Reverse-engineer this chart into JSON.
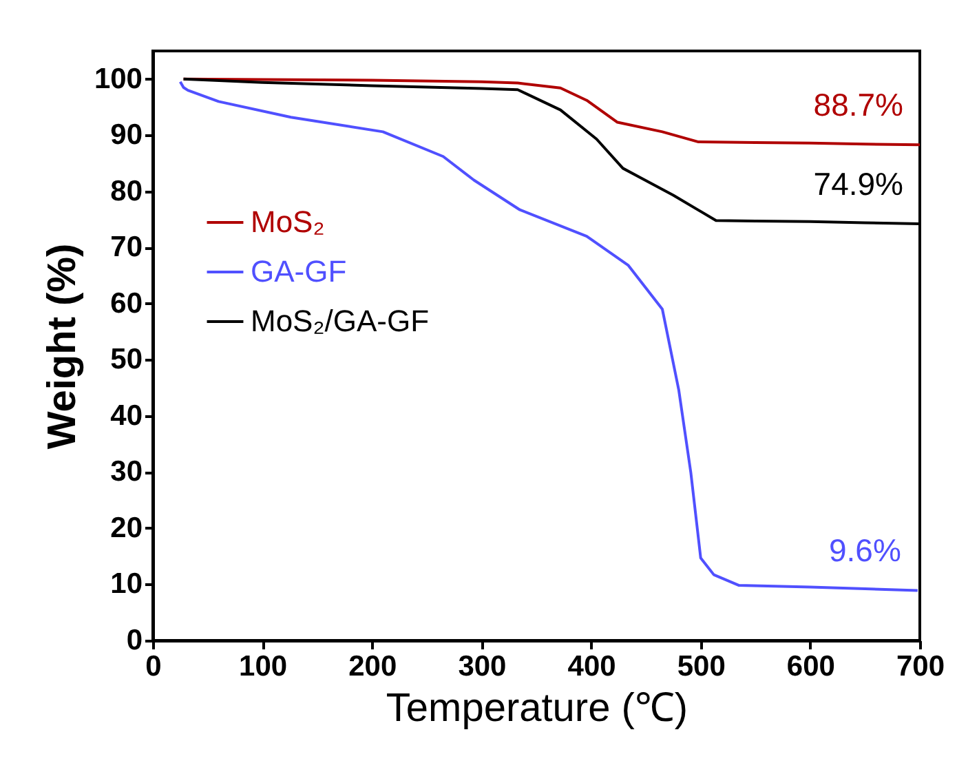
{
  "chart_data": {
    "type": "line",
    "xlabel": "Temperature (℃)",
    "ylabel": "Weight (%)",
    "xlim": [
      0,
      700
    ],
    "ylim": [
      0,
      105
    ],
    "xticks": [
      0,
      100,
      200,
      300,
      400,
      500,
      600,
      700
    ],
    "yticks": [
      0,
      10,
      20,
      30,
      40,
      50,
      60,
      70,
      80,
      90,
      100
    ],
    "grid": false,
    "legend": "top left",
    "line_style": "solid",
    "marker": "none",
    "series": [
      {
        "name": "MoS₂",
        "color": "#b00000",
        "x": [
          28,
          100,
          200,
          300,
          333,
          372,
          396,
          424,
          465,
          498,
          550,
          600,
          650,
          700
        ],
        "values": [
          100,
          99.9,
          99.8,
          99.5,
          99.3,
          98.4,
          96.2,
          92.3,
          90.6,
          88.8,
          88.7,
          88.6,
          88.4,
          88.3
        ]
      },
      {
        "name": "GA-GF",
        "color": "#5050ff",
        "x": [
          25,
          28,
          32,
          60,
          126,
          210,
          265,
          293,
          335,
          396,
          434,
          465,
          480,
          491,
          500,
          512,
          535,
          600,
          650,
          698
        ],
        "values": [
          99.5,
          98.5,
          98.0,
          96.0,
          93.2,
          90.6,
          86.2,
          82.0,
          76.7,
          72.0,
          66.8,
          59.0,
          44.6,
          29.9,
          14.7,
          11.7,
          9.8,
          9.5,
          9.2,
          8.9
        ]
      },
      {
        "name": "MoS₂/GA-GF",
        "color": "#000000",
        "x": [
          28,
          100,
          200,
          300,
          333,
          372,
          405,
          429,
          475,
          514,
          550,
          600,
          650,
          700
        ],
        "values": [
          100,
          99.4,
          98.8,
          98.3,
          98.1,
          94.5,
          89.3,
          84.1,
          79.3,
          74.8,
          74.7,
          74.6,
          74.4,
          74.2
        ]
      }
    ],
    "annotations": [
      "88.7%",
      "9.6%",
      "74.9%"
    ]
  }
}
